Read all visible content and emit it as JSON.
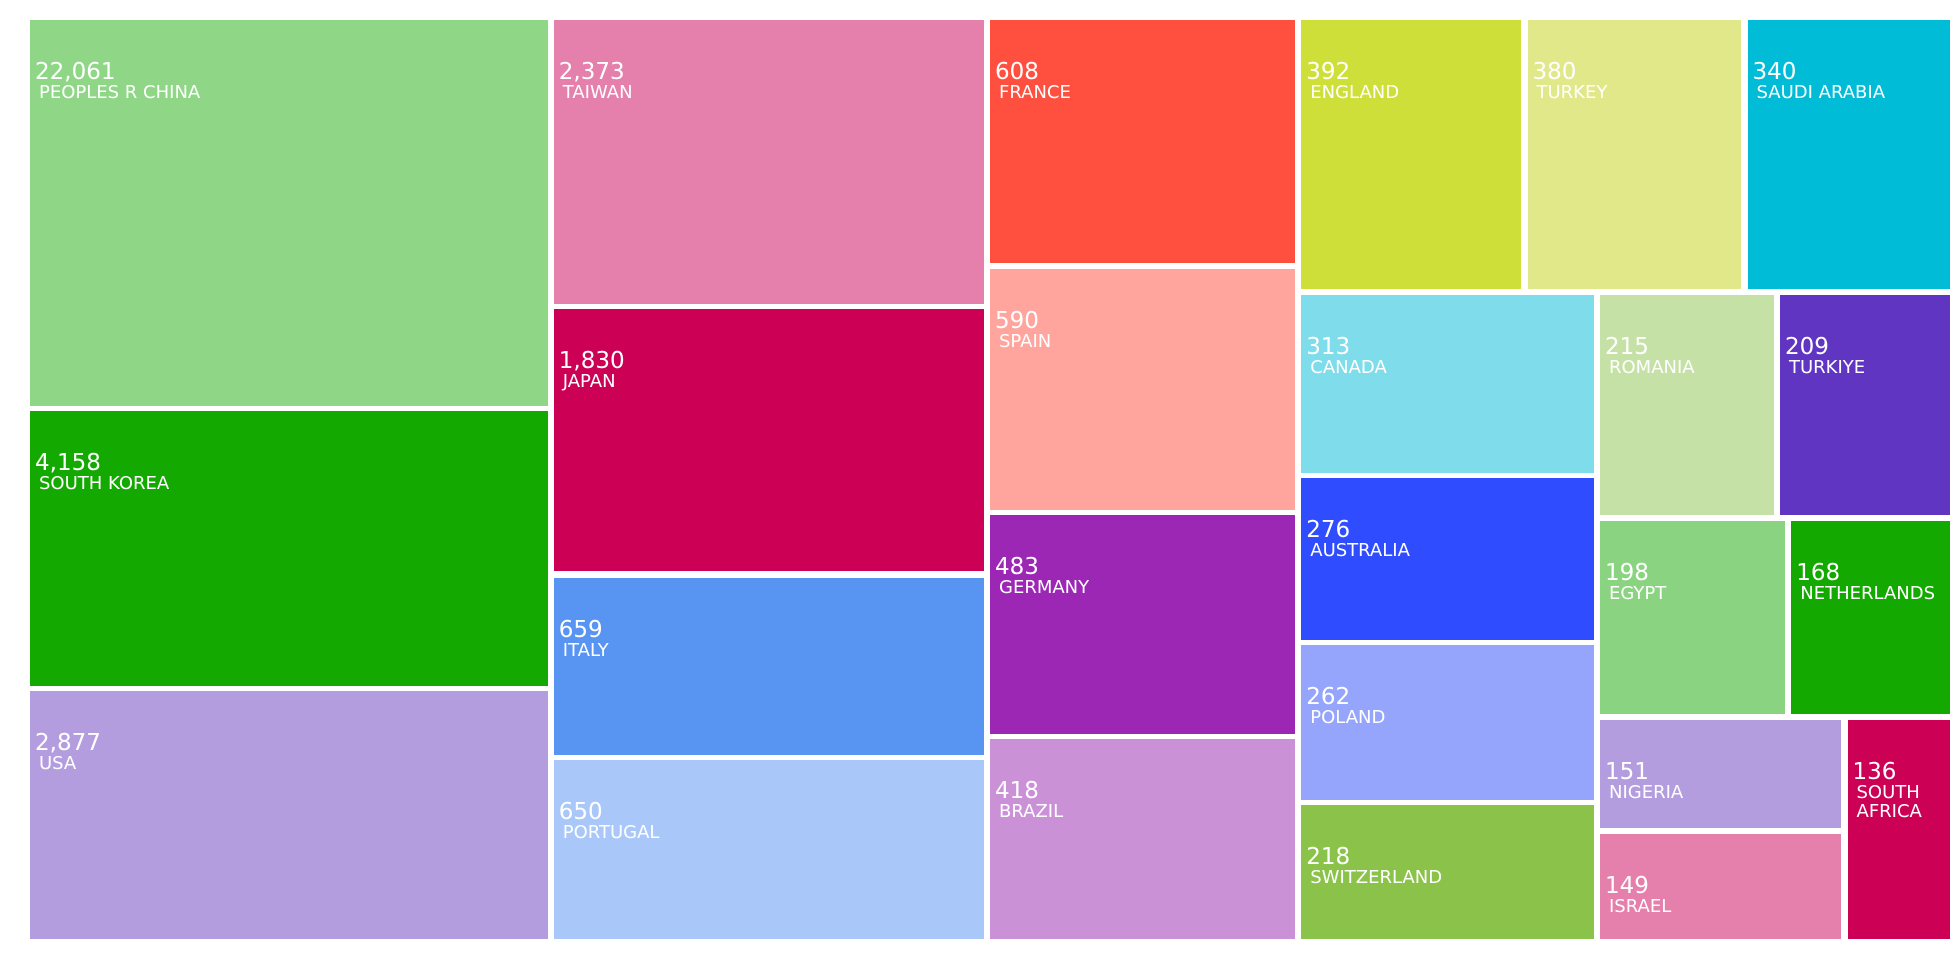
{
  "chart_data": {
    "type": "treemap",
    "categories": [
      "PEOPLES R CHINA",
      "SOUTH KOREA",
      "USA",
      "TAIWAN",
      "JAPAN",
      "ITALY",
      "PORTUGAL",
      "FRANCE",
      "SPAIN",
      "GERMANY",
      "BRAZIL",
      "ENGLAND",
      "TURKEY",
      "SAUDI ARABIA",
      "CANADA",
      "AUSTRALIA",
      "POLAND",
      "SWITZERLAND",
      "ROMANIA",
      "TURKIYE",
      "EGYPT",
      "NETHERLANDS",
      "NIGERIA",
      "ISRAEL",
      "SOUTH AFRICA"
    ],
    "values": [
      22061,
      4158,
      2877,
      2373,
      1830,
      659,
      650,
      608,
      590,
      483,
      418,
      392,
      380,
      340,
      313,
      276,
      262,
      218,
      215,
      209,
      198,
      168,
      151,
      149,
      136
    ],
    "value_labels": [
      "22,061",
      "4,158",
      "2,877",
      "2,373",
      "1,830",
      "659",
      "650",
      "608",
      "590",
      "483",
      "418",
      "392",
      "380",
      "340",
      "313",
      "276",
      "262",
      "218",
      "215",
      "209",
      "198",
      "168",
      "151",
      "149",
      "136"
    ],
    "colors": [
      "#8fd787",
      "#13a900",
      "#b39ddf",
      "#e57fab",
      "#cc0055",
      "#5894f2",
      "#a9c7f9",
      "#ff4f3f",
      "#ffa59d",
      "#9b27b4",
      "#cb91d7",
      "#cfdf3a",
      "#e1e88a",
      "#00bcd6",
      "#7fdcea",
      "#2f4dfe",
      "#95a5fb",
      "#8bc34a",
      "#c5e1a5",
      "#5f35c1",
      "#8ad481",
      "#13a900",
      "#b39ddf",
      "#e57fab",
      "#cc0055"
    ]
  }
}
